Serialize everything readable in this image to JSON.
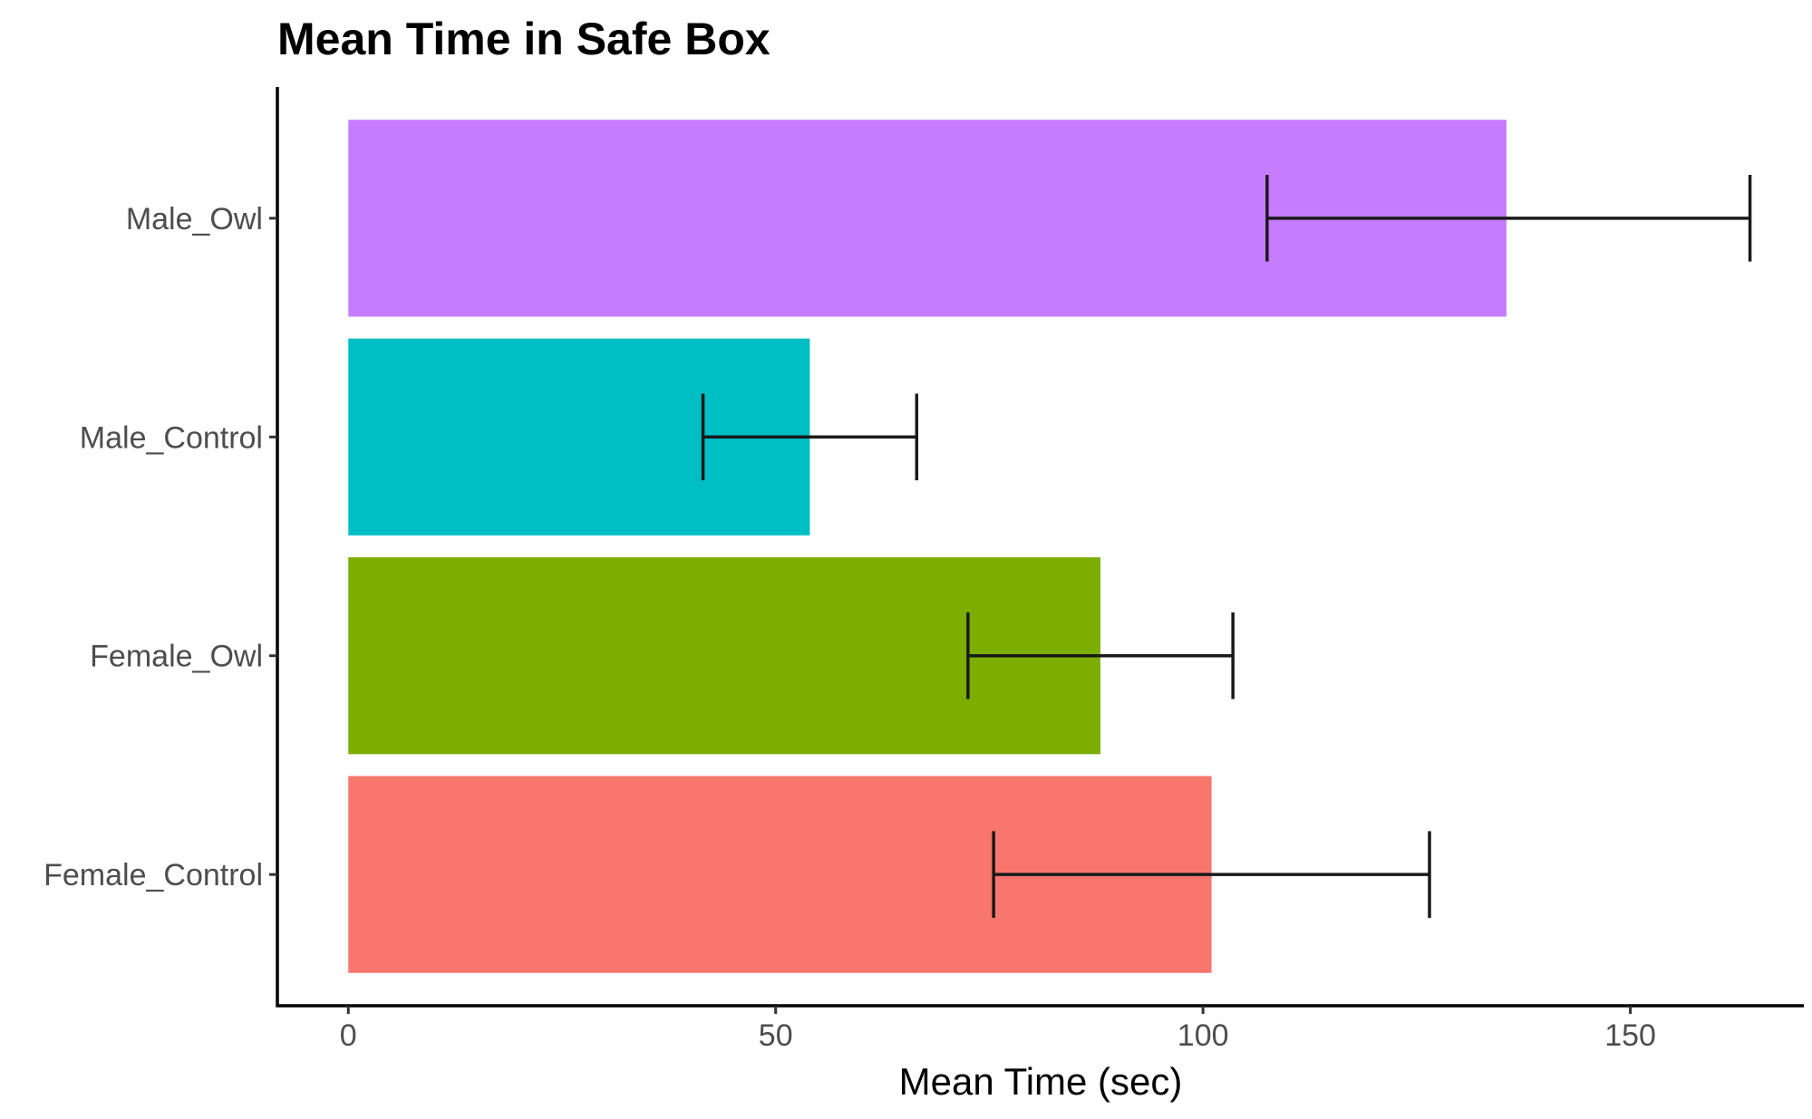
{
  "chart_data": {
    "type": "bar",
    "orientation": "horizontal",
    "title": "Mean Time in Safe Box",
    "xlabel": "Mean Time (sec)",
    "ylabel": "",
    "xlim": [
      -8.3,
      170.3
    ],
    "x_ticks": [
      0,
      50,
      100,
      150
    ],
    "categories": [
      "Female_Control",
      "Female_Owl",
      "Male_Control",
      "Male_Owl"
    ],
    "values": [
      101,
      88,
      54,
      135.5
    ],
    "error_low": [
      75.5,
      72.5,
      41.5,
      107.5
    ],
    "error_high": [
      126.5,
      103.5,
      66.5,
      164
    ],
    "colors": [
      "#F8766D",
      "#7CAE00",
      "#00BFC4",
      "#C77CFF"
    ],
    "legend": "none",
    "grid": false
  }
}
